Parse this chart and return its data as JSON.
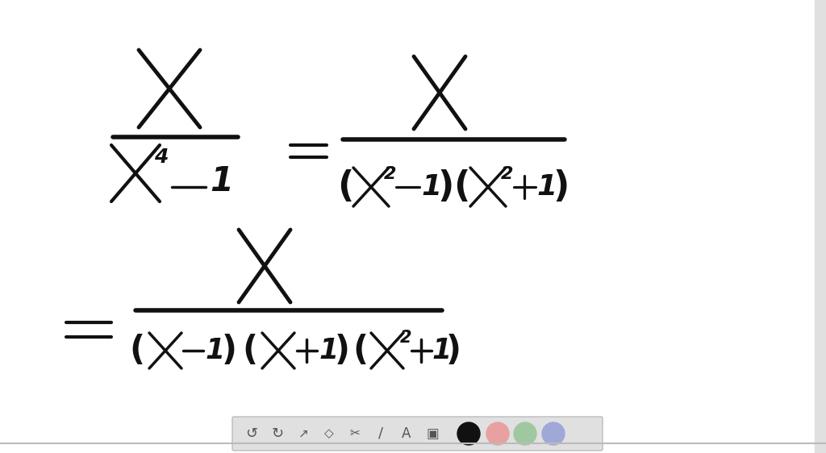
{
  "bg_color": "#ffffff",
  "toolbar_bg": "#e0e0e0",
  "text_color": "#111111",
  "toolbar_icon_color": "#555555",
  "circle_colors": [
    "#111111",
    "#e8a0a0",
    "#a0c8a0",
    "#a0a8d8"
  ],
  "bottom_bar_color": "#bbbbbb",
  "lw_thick": 3.0,
  "lw_med": 2.5,
  "lw_thin": 2.0
}
